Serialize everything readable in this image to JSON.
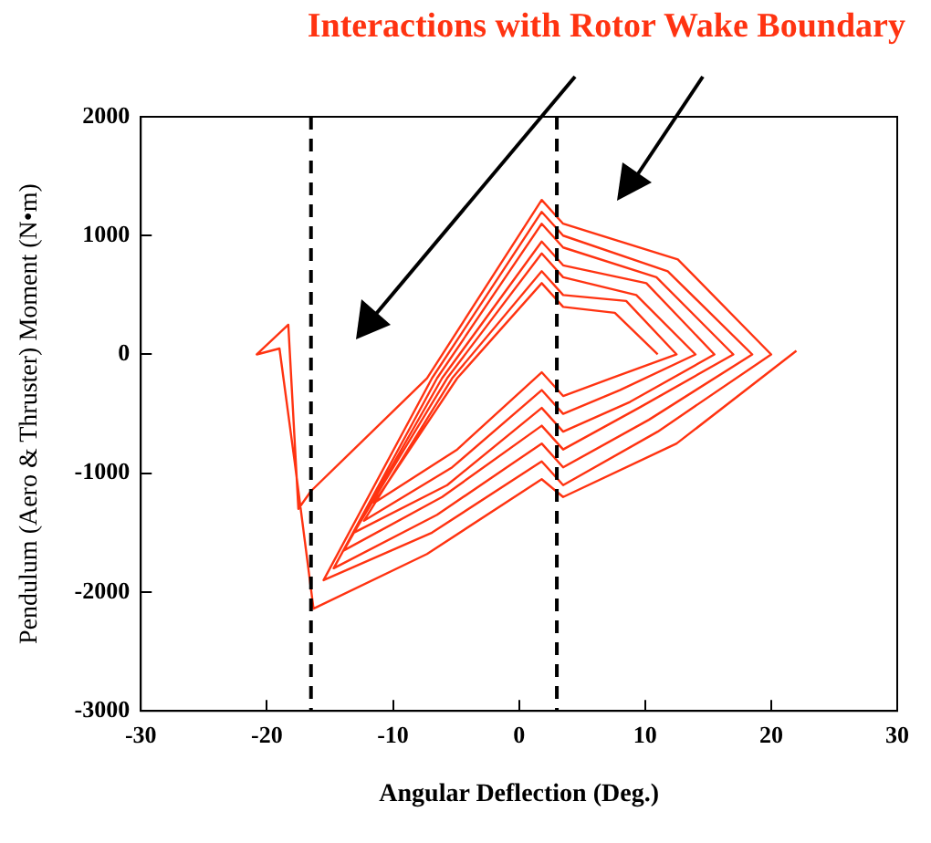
{
  "chart_data": {
    "type": "line",
    "title": "Interactions with Rotor Wake Boundary",
    "xlabel": "Angular Deflection (Deg.)",
    "ylabel": "Pendulum (Aero & Thruster) Moment (N•m)",
    "xlim": [
      -30,
      30
    ],
    "xticks": [
      -30,
      -20,
      -10,
      0,
      10,
      20,
      30
    ],
    "ylim": [
      -3000,
      2000
    ],
    "yticks": [
      -3000,
      -2000,
      -1000,
      0,
      1000,
      2000
    ],
    "grid": false,
    "marker": "none",
    "line_style": "solid",
    "x": [
      11,
      7.6,
      3.5,
      1.8,
      -4.9,
      -11.5,
      -4.9,
      1.8,
      3.5,
      7.3,
      12.5,
      8.5,
      3.5,
      1.8,
      -5.3,
      -12.3,
      -5.3,
      1.8,
      3.5,
      8,
      14,
      9.3,
      3.5,
      1.8,
      -5.7,
      -13.1,
      -5.7,
      1.8,
      3.5,
      8.8,
      15.5,
      10.1,
      3.5,
      1.8,
      -6.1,
      -13.9,
      -6.1,
      1.8,
      3.5,
      9.5,
      17,
      10.9,
      3.5,
      1.8,
      -6.5,
      -14.7,
      -6.5,
      1.8,
      3.5,
      10.3,
      18.5,
      11.8,
      3.5,
      1.8,
      -6.9,
      -15.5,
      -6.9,
      1.8,
      3.5,
      11,
      20,
      12.6,
      3.5,
      1.8,
      -7.3,
      -16.5,
      -17.5,
      -18.3,
      -20.8,
      -19,
      -17.8,
      -16.3,
      -7.3,
      1.8,
      3.5,
      12.5,
      22
    ],
    "series": [
      {
        "color": "#ff3311",
        "values": [
          0,
          350,
          400,
          600,
          -200,
          -1250,
          -800,
          -150,
          -350,
          -200,
          0,
          450,
          500,
          700,
          -200,
          -1400,
          -950,
          -300,
          -500,
          -300,
          0,
          500,
          650,
          850,
          -200,
          -1500,
          -1100,
          -450,
          -650,
          -400,
          0,
          600,
          750,
          950,
          -200,
          -1650,
          -1200,
          -600,
          -800,
          -450,
          0,
          650,
          900,
          1100,
          -200,
          -1800,
          -1350,
          -750,
          -950,
          -550,
          0,
          700,
          1000,
          1200,
          -200,
          -1900,
          -1500,
          -900,
          -1100,
          -650,
          0,
          800,
          1100,
          1300,
          -200,
          -1150,
          -1300,
          250,
          0,
          50,
          -900,
          -2140,
          -1680,
          -1050,
          -1200,
          -750,
          30
        ]
      }
    ],
    "ref_lines": [
      {
        "axis": "x",
        "value": -16.5,
        "color": "#000000",
        "line_style": "dashed"
      },
      {
        "axis": "x",
        "value": 3,
        "color": "#000000",
        "line_style": "dashed"
      }
    ]
  }
}
